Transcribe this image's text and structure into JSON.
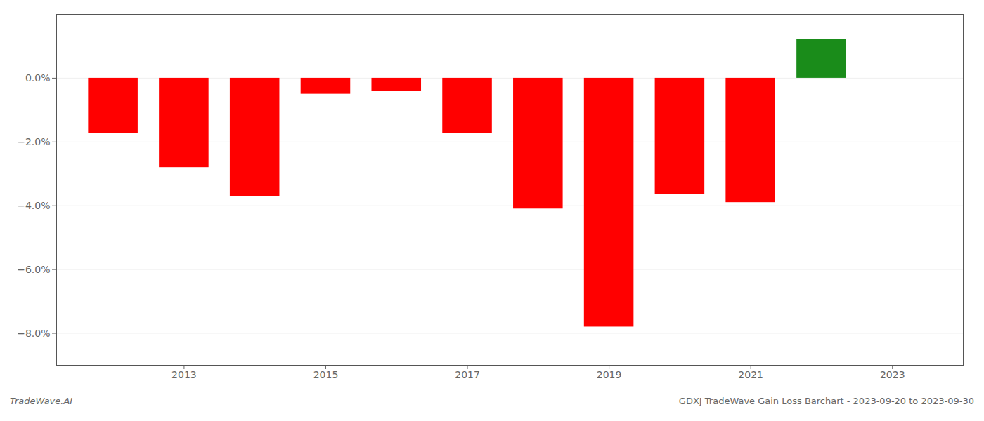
{
  "chart_data": {
    "type": "bar",
    "x": [
      2012,
      2013,
      2014,
      2015,
      2016,
      2017,
      2018,
      2019,
      2020,
      2021,
      2022
    ],
    "values": [
      -1.72,
      -2.8,
      -3.72,
      -0.5,
      -0.42,
      -1.72,
      -4.1,
      -7.8,
      -3.65,
      -3.9,
      1.22
    ],
    "colors": [
      "#ff0000",
      "#ff0000",
      "#ff0000",
      "#ff0000",
      "#ff0000",
      "#ff0000",
      "#ff0000",
      "#ff0000",
      "#ff0000",
      "#ff0000",
      "#1a8c1a"
    ],
    "xlim": [
      2011.2,
      2024.0
    ],
    "xticks": [
      2013,
      2015,
      2017,
      2019,
      2021,
      2023
    ],
    "ylim": [
      -9.0,
      2.0
    ],
    "yticks": [
      {
        "value": -8.0,
        "label": "−8.0%"
      },
      {
        "value": -6.0,
        "label": "−6.0%"
      },
      {
        "value": -4.0,
        "label": "−4.0%"
      },
      {
        "value": -2.0,
        "label": "−2.0%"
      },
      {
        "value": 0.0,
        "label": "0.0%"
      }
    ],
    "grid": true,
    "annotations": [
      "TradeWave.AI",
      "GDXJ TradeWave Gain Loss Barchart - 2023-09-20 to 2023-09-30"
    ]
  }
}
